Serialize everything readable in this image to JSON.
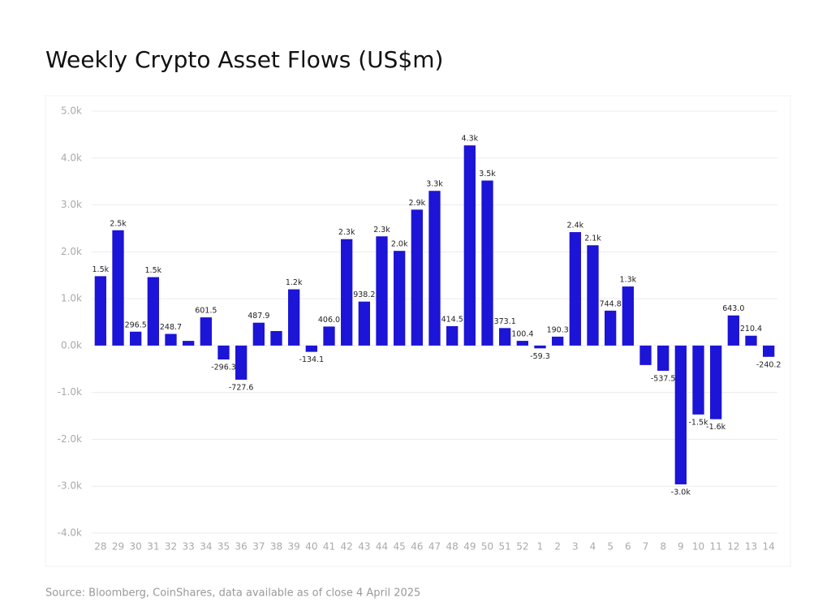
{
  "chart_data": {
    "type": "bar",
    "title": "Weekly Crypto Asset Flows (US$m)",
    "source": "Source: Bloomberg, CoinShares, data available as of close 4 April 2025",
    "categories": [
      "28",
      "29",
      "30",
      "31",
      "32",
      "33",
      "34",
      "35",
      "36",
      "37",
      "38",
      "39",
      "40",
      "41",
      "42",
      "43",
      "44",
      "45",
      "46",
      "47",
      "48",
      "49",
      "50",
      "51",
      "52",
      "1",
      "2",
      "3",
      "4",
      "5",
      "6",
      "7",
      "8",
      "9",
      "10",
      "11",
      "12",
      "13",
      "14"
    ],
    "values": [
      1480,
      2460,
      296.5,
      1460,
      248.7,
      100,
      601.5,
      -296.3,
      -727.6,
      487.9,
      310,
      1200,
      -134.1,
      406.0,
      2270,
      938.2,
      2330,
      2020,
      2900,
      3300,
      414.5,
      4270,
      3520,
      373.1,
      100.4,
      -59.3,
      190.3,
      2420,
      2140,
      744.8,
      1260,
      -415,
      -537.5,
      -2960,
      -1470,
      -1570,
      643.0,
      210.4,
      -240.2
    ],
    "value_labels": [
      "1.5k",
      "2.5k",
      "296.5",
      "1.5k",
      "248.7",
      null,
      "601.5",
      "-296.3",
      "-727.6",
      "487.9",
      null,
      "1.2k",
      "-134.1",
      "406.0",
      "2.3k",
      "938.2",
      "2.3k",
      "2.0k",
      "2.9k",
      "3.3k",
      "414.5",
      "4.3k",
      "3.5k",
      "373.1",
      "100.4",
      "-59.3",
      "190.3",
      "2.4k",
      "2.1k",
      "744.8",
      "1.3k",
      null,
      "-537.5",
      "-3.0k",
      "-1.5k",
      "-1.6k",
      "643.0",
      "210.4",
      "-240.2"
    ],
    "color": "#1c14d6",
    "ylim": [
      -4000,
      5000
    ],
    "yticks": [
      {
        "value": -4000,
        "label": "-4.0k"
      },
      {
        "value": -3000,
        "label": "-3.0k"
      },
      {
        "value": -2000,
        "label": "-2.0k"
      },
      {
        "value": -1000,
        "label": "-1.0k"
      },
      {
        "value": 0,
        "label": "0.0k"
      },
      {
        "value": 1000,
        "label": "1.0k"
      },
      {
        "value": 2000,
        "label": "2.0k"
      },
      {
        "value": 3000,
        "label": "3.0k"
      },
      {
        "value": 4000,
        "label": "4.0k"
      },
      {
        "value": 5000,
        "label": "5.0k"
      }
    ],
    "grid": true
  }
}
